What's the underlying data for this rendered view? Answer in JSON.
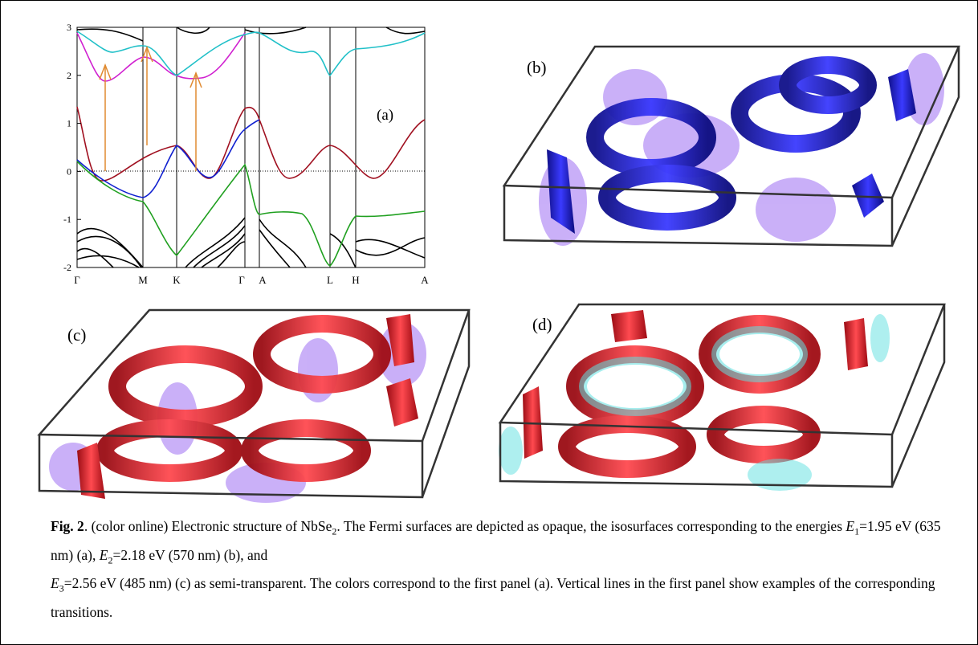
{
  "figure": {
    "band_plot": {
      "label": "(a)",
      "yticks": [
        3,
        2,
        1,
        0,
        -1,
        -2
      ],
      "kpoints": [
        "Γ",
        "M",
        "K",
        "Γ",
        "A",
        "L",
        "H",
        "A"
      ]
    },
    "panels": [
      {
        "label": "(b)"
      },
      {
        "label": "(c)"
      },
      {
        "label": "(d)"
      }
    ]
  },
  "caption": {
    "figure_label": "Fig. 2",
    "segments": [
      ". (color online) Electronic structure of NbSe",
      "2",
      ". The Fermi surfaces are depicted as opaque, the isosurfaces corresponding to the energies ",
      "E",
      "1",
      "=1.95 eV (635 nm) (a), ",
      "E",
      "2",
      "=2.18 eV (570 nm) (b), and ",
      "E",
      "3",
      "=2.56 eV (485 nm) (c) as semi-transparent. The colors correspond to the first panel (a). Vertical lines in the first panel show examples of the corresponding transitions."
    ]
  }
}
